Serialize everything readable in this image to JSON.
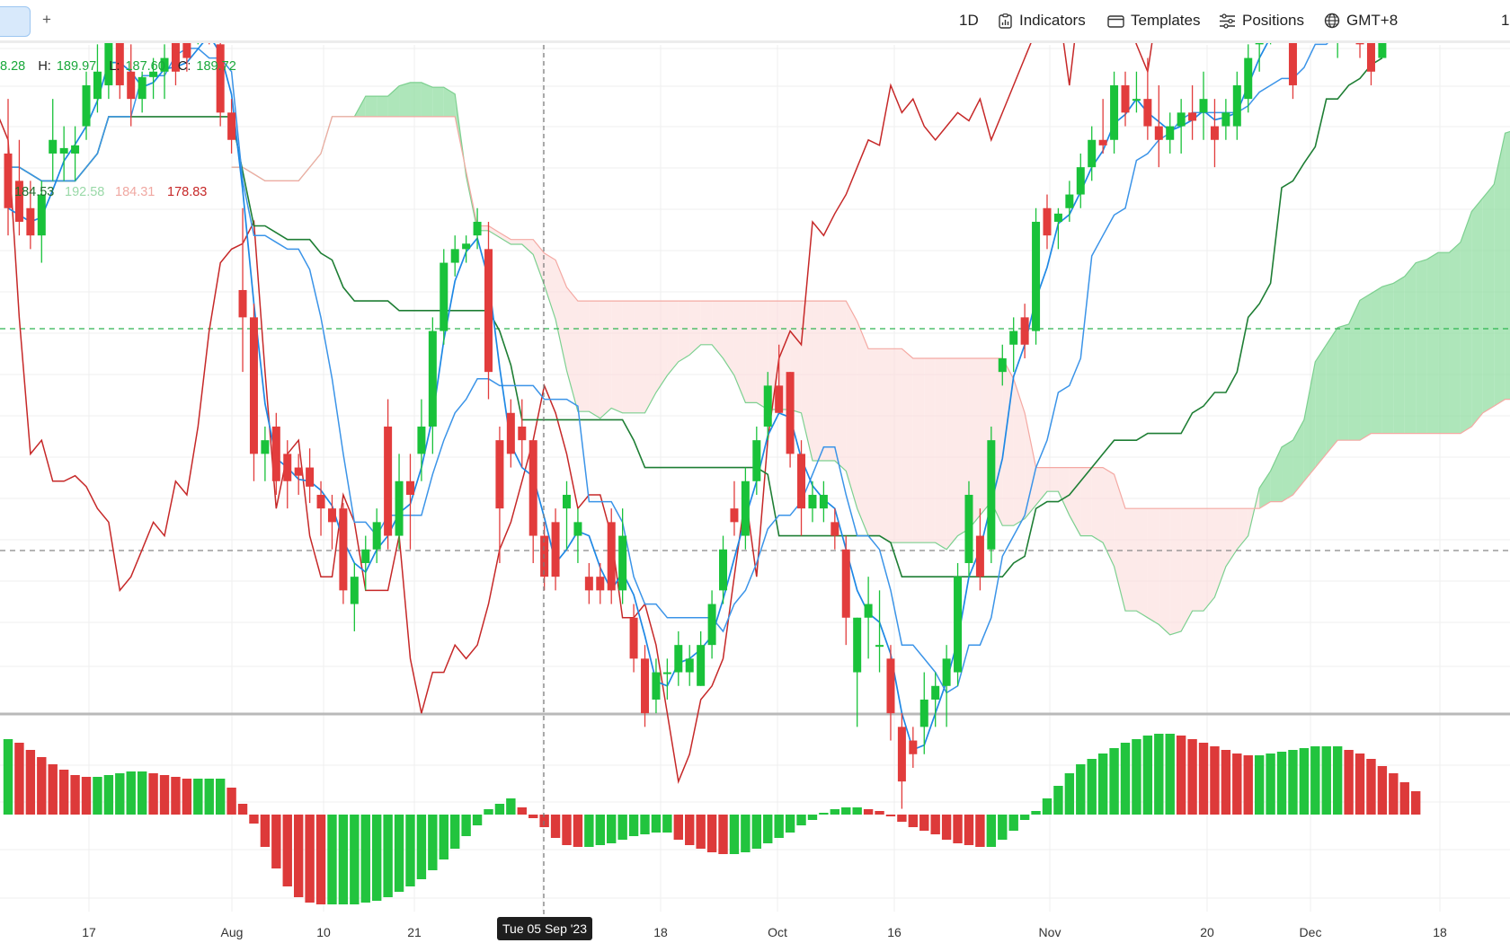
{
  "toolbar": {
    "add_tab": "+",
    "interval": "1D",
    "indicators": "Indicators",
    "templates": "Templates",
    "positions": "Positions",
    "timezone": "GMT+8",
    "overflow": "1"
  },
  "ohlc": {
    "open_partial": "8.28",
    "h_label": "H:",
    "h": "189.97",
    "l_label": "L:",
    "l": "187.60",
    "c_label": "C:",
    "c": "189.72"
  },
  "indicator_values": {
    "v1": "184.53",
    "v2": "192.58",
    "v3": "184.31",
    "v4": "178.83"
  },
  "crosshair_date": "Tue 05 Sep '23",
  "colors": {
    "up": "#19c23a",
    "down": "#e23c3c",
    "tenkan": "#1e88e5",
    "kijun": "#1e7e34",
    "chikou": "#c62828",
    "cloud_bull": "#8fdc9f",
    "cloud_bear": "#fbd9d7"
  },
  "chart_data": {
    "type": "candlestick",
    "x_ticks": [
      "17",
      "Aug",
      "10",
      "21",
      "Tue 05 Sep '23",
      "18",
      "Oct",
      "16",
      "Nov",
      "20",
      "Dec",
      "18"
    ],
    "candles": [
      {
        "o": 184,
        "h": 186,
        "l": 181,
        "c": 182
      },
      {
        "o": 183,
        "h": 184.5,
        "l": 181,
        "c": 181.5
      },
      {
        "o": 182,
        "h": 183,
        "l": 180.5,
        "c": 181
      },
      {
        "o": 181,
        "h": 183,
        "l": 180,
        "c": 182.5
      },
      {
        "o": 184,
        "h": 186,
        "l": 183,
        "c": 184.5
      },
      {
        "o": 184,
        "h": 185,
        "l": 183,
        "c": 184.2
      },
      {
        "o": 184,
        "h": 185,
        "l": 183,
        "c": 184.3
      },
      {
        "o": 185,
        "h": 187,
        "l": 184.5,
        "c": 186.5
      },
      {
        "o": 186,
        "h": 188,
        "l": 185.5,
        "c": 187
      },
      {
        "o": 186.5,
        "h": 190.7,
        "l": 186,
        "c": 188.5
      },
      {
        "o": 188.5,
        "h": 189,
        "l": 186,
        "c": 186.5
      },
      {
        "o": 187,
        "h": 188,
        "l": 185,
        "c": 186
      },
      {
        "o": 186,
        "h": 187,
        "l": 185.5,
        "c": 186.8
      },
      {
        "o": 186.8,
        "h": 187.5,
        "l": 186,
        "c": 187
      },
      {
        "o": 187,
        "h": 188,
        "l": 186,
        "c": 187.5
      },
      {
        "o": 189,
        "h": 189.5,
        "l": 186.5,
        "c": 187
      },
      {
        "o": 188.5,
        "h": 189,
        "l": 187,
        "c": 187.5
      },
      {
        "o": 188.5,
        "h": 189.5,
        "l": 188,
        "c": 189
      },
      {
        "o": 189.5,
        "h": 190,
        "l": 188,
        "c": 188.5
      },
      {
        "o": 188,
        "h": 188.5,
        "l": 185,
        "c": 185.5
      },
      {
        "o": 185.5,
        "h": 186,
        "l": 184,
        "c": 184.5
      },
      {
        "o": 179,
        "h": 182,
        "l": 176,
        "c": 178
      },
      {
        "o": 178,
        "h": 178.5,
        "l": 172,
        "c": 173
      },
      {
        "o": 173,
        "h": 174,
        "l": 172,
        "c": 173.5
      },
      {
        "o": 174,
        "h": 174.5,
        "l": 171.5,
        "c": 172
      },
      {
        "o": 173,
        "h": 173.5,
        "l": 171,
        "c": 172
      },
      {
        "o": 172.5,
        "h": 173,
        "l": 171.5,
        "c": 172.2
      },
      {
        "o": 172.5,
        "h": 173.2,
        "l": 171.2,
        "c": 171.8
      },
      {
        "o": 171.5,
        "h": 172,
        "l": 170,
        "c": 171
      },
      {
        "o": 171,
        "h": 171.5,
        "l": 169.5,
        "c": 170.5
      },
      {
        "o": 171,
        "h": 171.2,
        "l": 167.5,
        "c": 168
      },
      {
        "o": 167.5,
        "h": 169,
        "l": 166.5,
        "c": 168.5
      },
      {
        "o": 169,
        "h": 170,
        "l": 168,
        "c": 169.5
      },
      {
        "o": 169.5,
        "h": 171,
        "l": 169,
        "c": 170.5
      },
      {
        "o": 174,
        "h": 175,
        "l": 169.5,
        "c": 170
      },
      {
        "o": 170,
        "h": 173,
        "l": 169.5,
        "c": 172
      },
      {
        "o": 172,
        "h": 173,
        "l": 169.5,
        "c": 171.5
      },
      {
        "o": 173,
        "h": 175,
        "l": 172,
        "c": 174
      },
      {
        "o": 174,
        "h": 178,
        "l": 173,
        "c": 177.5
      },
      {
        "o": 177.5,
        "h": 180.5,
        "l": 177,
        "c": 180
      },
      {
        "o": 180,
        "h": 181,
        "l": 179.5,
        "c": 180.5
      },
      {
        "o": 180.5,
        "h": 181,
        "l": 180,
        "c": 180.7
      },
      {
        "o": 181,
        "h": 182,
        "l": 180.5,
        "c": 181.5
      },
      {
        "o": 180.5,
        "h": 181.5,
        "l": 175,
        "c": 176
      },
      {
        "o": 173.5,
        "h": 174,
        "l": 169,
        "c": 171
      },
      {
        "o": 174.5,
        "h": 175,
        "l": 172.5,
        "c": 173
      },
      {
        "o": 174,
        "h": 175,
        "l": 172.5,
        "c": 173.5
      },
      {
        "o": 173.5,
        "h": 173.5,
        "l": 169,
        "c": 170
      },
      {
        "o": 170,
        "h": 170.5,
        "l": 168,
        "c": 168.5
      },
      {
        "o": 170.5,
        "h": 171,
        "l": 168,
        "c": 168.5
      },
      {
        "o": 171,
        "h": 172,
        "l": 169.5,
        "c": 171.5
      },
      {
        "o": 170,
        "h": 171,
        "l": 169,
        "c": 170.5
      },
      {
        "o": 168.5,
        "h": 169,
        "l": 167.5,
        "c": 168
      },
      {
        "o": 168.5,
        "h": 169,
        "l": 167.5,
        "c": 168
      },
      {
        "o": 170.5,
        "h": 171,
        "l": 167.5,
        "c": 168
      },
      {
        "o": 168,
        "h": 171,
        "l": 167.5,
        "c": 170
      },
      {
        "o": 167,
        "h": 167.5,
        "l": 165,
        "c": 165.5
      },
      {
        "o": 165.5,
        "h": 166,
        "l": 163,
        "c": 163.5
      },
      {
        "o": 164,
        "h": 165.5,
        "l": 163.5,
        "c": 165
      },
      {
        "o": 165,
        "h": 165.5,
        "l": 164,
        "c": 165
      },
      {
        "o": 165,
        "h": 166.5,
        "l": 164.5,
        "c": 166
      },
      {
        "o": 165,
        "h": 166,
        "l": 164.5,
        "c": 165.5
      },
      {
        "o": 164.5,
        "h": 166.5,
        "l": 164.5,
        "c": 166
      },
      {
        "o": 166,
        "h": 168,
        "l": 165.5,
        "c": 167.5
      },
      {
        "o": 168,
        "h": 170,
        "l": 167.5,
        "c": 169.5
      },
      {
        "o": 171,
        "h": 172,
        "l": 170,
        "c": 170.5
      },
      {
        "o": 170,
        "h": 172.5,
        "l": 169.5,
        "c": 172
      },
      {
        "o": 172,
        "h": 174,
        "l": 171.5,
        "c": 173.5
      },
      {
        "o": 174,
        "h": 176,
        "l": 173.5,
        "c": 175.5
      },
      {
        "o": 175.5,
        "h": 177,
        "l": 174.5,
        "c": 174.5
      },
      {
        "o": 176,
        "h": 176,
        "l": 172.5,
        "c": 173
      },
      {
        "o": 173,
        "h": 173.5,
        "l": 170,
        "c": 171
      },
      {
        "o": 171,
        "h": 172,
        "l": 170.5,
        "c": 171.5
      },
      {
        "o": 171,
        "h": 172,
        "l": 170.5,
        "c": 171.5
      },
      {
        "o": 170.5,
        "h": 171,
        "l": 169.5,
        "c": 170
      },
      {
        "o": 169.5,
        "h": 170,
        "l": 166,
        "c": 167
      },
      {
        "o": 165,
        "h": 167,
        "l": 163,
        "c": 167
      },
      {
        "o": 167,
        "h": 168.5,
        "l": 165.5,
        "c": 167.5
      },
      {
        "o": 166,
        "h": 168,
        "l": 165,
        "c": 166
      },
      {
        "o": 165.5,
        "h": 166,
        "l": 162.5,
        "c": 163.5
      },
      {
        "o": 163,
        "h": 163.5,
        "l": 160,
        "c": 161
      },
      {
        "o": 162.5,
        "h": 163,
        "l": 161.5,
        "c": 162
      },
      {
        "o": 163,
        "h": 165,
        "l": 162,
        "c": 164
      },
      {
        "o": 164,
        "h": 165,
        "l": 163,
        "c": 164.5
      },
      {
        "o": 164.5,
        "h": 166,
        "l": 163,
        "c": 165.5
      },
      {
        "o": 165,
        "h": 169,
        "l": 164.5,
        "c": 168.5
      },
      {
        "o": 169,
        "h": 172,
        "l": 168.5,
        "c": 171.5
      },
      {
        "o": 170,
        "h": 171,
        "l": 168,
        "c": 168.5
      },
      {
        "o": 169.5,
        "h": 174,
        "l": 169,
        "c": 173.5
      },
      {
        "o": 176,
        "h": 177,
        "l": 175.5,
        "c": 176.5
      },
      {
        "o": 177,
        "h": 178,
        "l": 176,
        "c": 177.5
      },
      {
        "o": 178,
        "h": 178.5,
        "l": 176.5,
        "c": 177
      },
      {
        "o": 177.5,
        "h": 182,
        "l": 177,
        "c": 181.5
      },
      {
        "o": 182,
        "h": 182.5,
        "l": 180.5,
        "c": 181
      },
      {
        "o": 181.5,
        "h": 182,
        "l": 180.5,
        "c": 181.8
      },
      {
        "o": 182,
        "h": 183,
        "l": 181.5,
        "c": 182.5
      },
      {
        "o": 182.5,
        "h": 184,
        "l": 182,
        "c": 183.5
      },
      {
        "o": 183.5,
        "h": 185,
        "l": 183,
        "c": 184.5
      },
      {
        "o": 184.5,
        "h": 186,
        "l": 184,
        "c": 184.3
      },
      {
        "o": 184.5,
        "h": 187,
        "l": 184,
        "c": 186.5
      },
      {
        "o": 186.5,
        "h": 187,
        "l": 185,
        "c": 185.5
      },
      {
        "o": 186,
        "h": 187,
        "l": 185.5,
        "c": 186
      },
      {
        "o": 186,
        "h": 187.5,
        "l": 184.5,
        "c": 185
      },
      {
        "o": 185,
        "h": 186.5,
        "l": 183.5,
        "c": 184.5
      },
      {
        "o": 184.5,
        "h": 185.5,
        "l": 184,
        "c": 185
      },
      {
        "o": 185,
        "h": 186,
        "l": 184,
        "c": 185.5
      },
      {
        "o": 185.5,
        "h": 186.5,
        "l": 184.5,
        "c": 185.2
      },
      {
        "o": 185.5,
        "h": 187,
        "l": 184.5,
        "c": 186
      },
      {
        "o": 185,
        "h": 186,
        "l": 183.5,
        "c": 184.5
      },
      {
        "o": 185,
        "h": 186,
        "l": 184.5,
        "c": 185.5
      },
      {
        "o": 185,
        "h": 187,
        "l": 184.5,
        "c": 186.5
      },
      {
        "o": 186,
        "h": 188,
        "l": 185.5,
        "c": 187.5
      },
      {
        "o": 188,
        "h": 189,
        "l": 187,
        "c": 188.5
      },
      {
        "o": 188.5,
        "h": 189.5,
        "l": 188,
        "c": 188.8
      },
      {
        "o": 189,
        "h": 190,
        "l": 188.5,
        "c": 189.5
      },
      {
        "o": 189,
        "h": 190,
        "l": 186,
        "c": 186.5
      },
      {
        "o": 189.5,
        "h": 190.8,
        "l": 189,
        "c": 190
      },
      {
        "o": 190,
        "h": 191.5,
        "l": 189.5,
        "c": 191
      },
      {
        "o": 191,
        "h": 191.2,
        "l": 189,
        "c": 189.5
      },
      {
        "o": 189.5,
        "h": 190,
        "l": 187.5,
        "c": 189.8
      },
      {
        "o": 190,
        "h": 190.3,
        "l": 188.5,
        "c": 189.2
      },
      {
        "o": 189.5,
        "h": 190,
        "l": 187.5,
        "c": 188
      },
      {
        "o": 188.5,
        "h": 189,
        "l": 186.5,
        "c": 187
      },
      {
        "o": 187.5,
        "h": 189.97,
        "l": 187.6,
        "c": 189.72
      }
    ],
    "oscillator": [
      4.2,
      4.0,
      3.6,
      3.2,
      2.8,
      2.5,
      2.2,
      2.1,
      2.1,
      2.2,
      2.3,
      2.4,
      2.4,
      2.3,
      2.2,
      2.1,
      2.0,
      2.0,
      2.0,
      2.0,
      1.5,
      0.6,
      -0.5,
      -1.8,
      -3.0,
      -4.0,
      -4.6,
      -4.9,
      -5.0,
      -5.0,
      -5.0,
      -5.0,
      -4.9,
      -4.8,
      -4.6,
      -4.3,
      -4.0,
      -3.6,
      -3.1,
      -2.5,
      -1.9,
      -1.2,
      -0.6,
      0.3,
      0.6,
      0.9,
      0.4,
      -0.2,
      -0.7,
      -1.3,
      -1.7,
      -1.8,
      -1.8,
      -1.7,
      -1.6,
      -1.4,
      -1.2,
      -1.1,
      -1.0,
      -1.0,
      -1.4,
      -1.7,
      -1.9,
      -2.1,
      -2.2,
      -2.2,
      -2.1,
      -1.9,
      -1.6,
      -1.3,
      -1.0,
      -0.6,
      -0.3,
      0.1,
      0.3,
      0.4,
      0.4,
      0.3,
      0.2,
      -0.1,
      -0.4,
      -0.7,
      -0.9,
      -1.1,
      -1.4,
      -1.6,
      -1.7,
      -1.8,
      -1.8,
      -1.4,
      -0.9,
      -0.3,
      0.2,
      0.9,
      1.6,
      2.3,
      2.8,
      3.1,
      3.4,
      3.7,
      4.0,
      4.2,
      4.4,
      4.5,
      4.5,
      4.4,
      4.2,
      4.0,
      3.8,
      3.6,
      3.4,
      3.3,
      3.3,
      3.4,
      3.5,
      3.6,
      3.7,
      3.8,
      3.8,
      3.8,
      3.6,
      3.4,
      3.1,
      2.7,
      2.3,
      1.8,
      1.3
    ]
  }
}
